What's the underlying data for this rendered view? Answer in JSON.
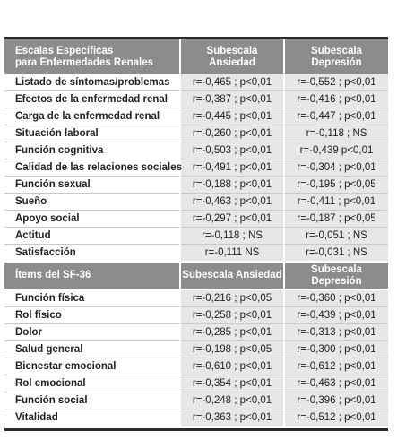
{
  "header": {
    "col1_line1": "Escalas Específicas",
    "col1_line2": "para Enfermedades Renales",
    "col2_line1": "Subescala",
    "col2_line2": "Ansiedad",
    "col3_line1": "Subescala",
    "col3_line2": "Depresión"
  },
  "renal_rows": [
    {
      "label": "Listado de síntomas/problemas",
      "ansiedad": "r=-0,465 ; p<0,01",
      "depresion": "r=-0,552 ; p<0,01"
    },
    {
      "label": "Efectos de la enfermedad renal",
      "ansiedad": "r=-0,387 ; p<0,01",
      "depresion": "r=-0,416 ; p<0,01"
    },
    {
      "label": "Carga de la enfermedad renal",
      "ansiedad": "r=-0,445 ; p<0,01",
      "depresion": "r=-0,447 ; p<0,01"
    },
    {
      "label": "Situación laboral",
      "ansiedad": "r=-0,260 ; p<0,01",
      "depresion": "r=-0,118 ; NS"
    },
    {
      "label": "Función cognitiva",
      "ansiedad": "r=-0,503 ; p<0,01",
      "depresion": "r=-0,439 p<0,01"
    },
    {
      "label": "Calidad de las relaciones sociales",
      "ansiedad": "r=-0,491 ; p<0,01",
      "depresion": "r=-0,304 ; p<0,01"
    },
    {
      "label": "Función sexual",
      "ansiedad": "r=-0,188 ; p<0,01",
      "depresion": "r=-0,195 ; p<0,05"
    },
    {
      "label": "Sueño",
      "ansiedad": "r=-0,463 ; p<0,01",
      "depresion": "r=-0,411 ; p<0,01"
    },
    {
      "label": "Apoyo social",
      "ansiedad": "r=-0,297 ; p<0,01",
      "depresion": "r=-0,187 ; p<0,05"
    },
    {
      "label": "Actitud",
      "ansiedad": "r=-0,118 ; NS",
      "depresion": "r=-0,051 ; NS"
    },
    {
      "label": "Satisfacción",
      "ansiedad": "r=-0,111 NS",
      "depresion": "r=-0,031 ; NS"
    }
  ],
  "sf36_header": {
    "col1": "Ítems del SF-36",
    "col2": "Subescala Ansiedad",
    "col3": "Subescala Depresión"
  },
  "sf36_rows": [
    {
      "label": "Función física",
      "ansiedad": "r=-0,216 ; p<0,05",
      "depresion": "r=-0,360 ; p<0,01"
    },
    {
      "label": "Rol físico",
      "ansiedad": "r=-0,258 ; p<0,01",
      "depresion": "r=-0,439 ; p<0,01"
    },
    {
      "label": "Dolor",
      "ansiedad": "r=-0,285 ; p<0,01",
      "depresion": "r=-0,313 ; p<0,01"
    },
    {
      "label": "Salud general",
      "ansiedad": "r=-0,198 ; p<0,05",
      "depresion": "r=-0,300 ; p<0,01"
    },
    {
      "label": "Bienestar emocional",
      "ansiedad": "r=-0,610 ; p<0,01",
      "depresion": "r=-0,612 ; p<0,01"
    },
    {
      "label": "Rol emocional",
      "ansiedad": "r=-0,354 ; p<0,01",
      "depresion": "r=-0,463 ; p<0,01"
    },
    {
      "label": "Función social",
      "ansiedad": "r=-0,248 ; p<0,01",
      "depresion": "r=-0,396 ; p<0,01"
    },
    {
      "label": "Vitalidad",
      "ansiedad": "r=-0,363 ; p<0,01",
      "depresion": "r=-0,512 ; p<0,01"
    }
  ],
  "colors": {
    "header_bg": "#8c8c8c",
    "value_bg": "#e7e7e7",
    "rule": "#2b2b2b"
  }
}
